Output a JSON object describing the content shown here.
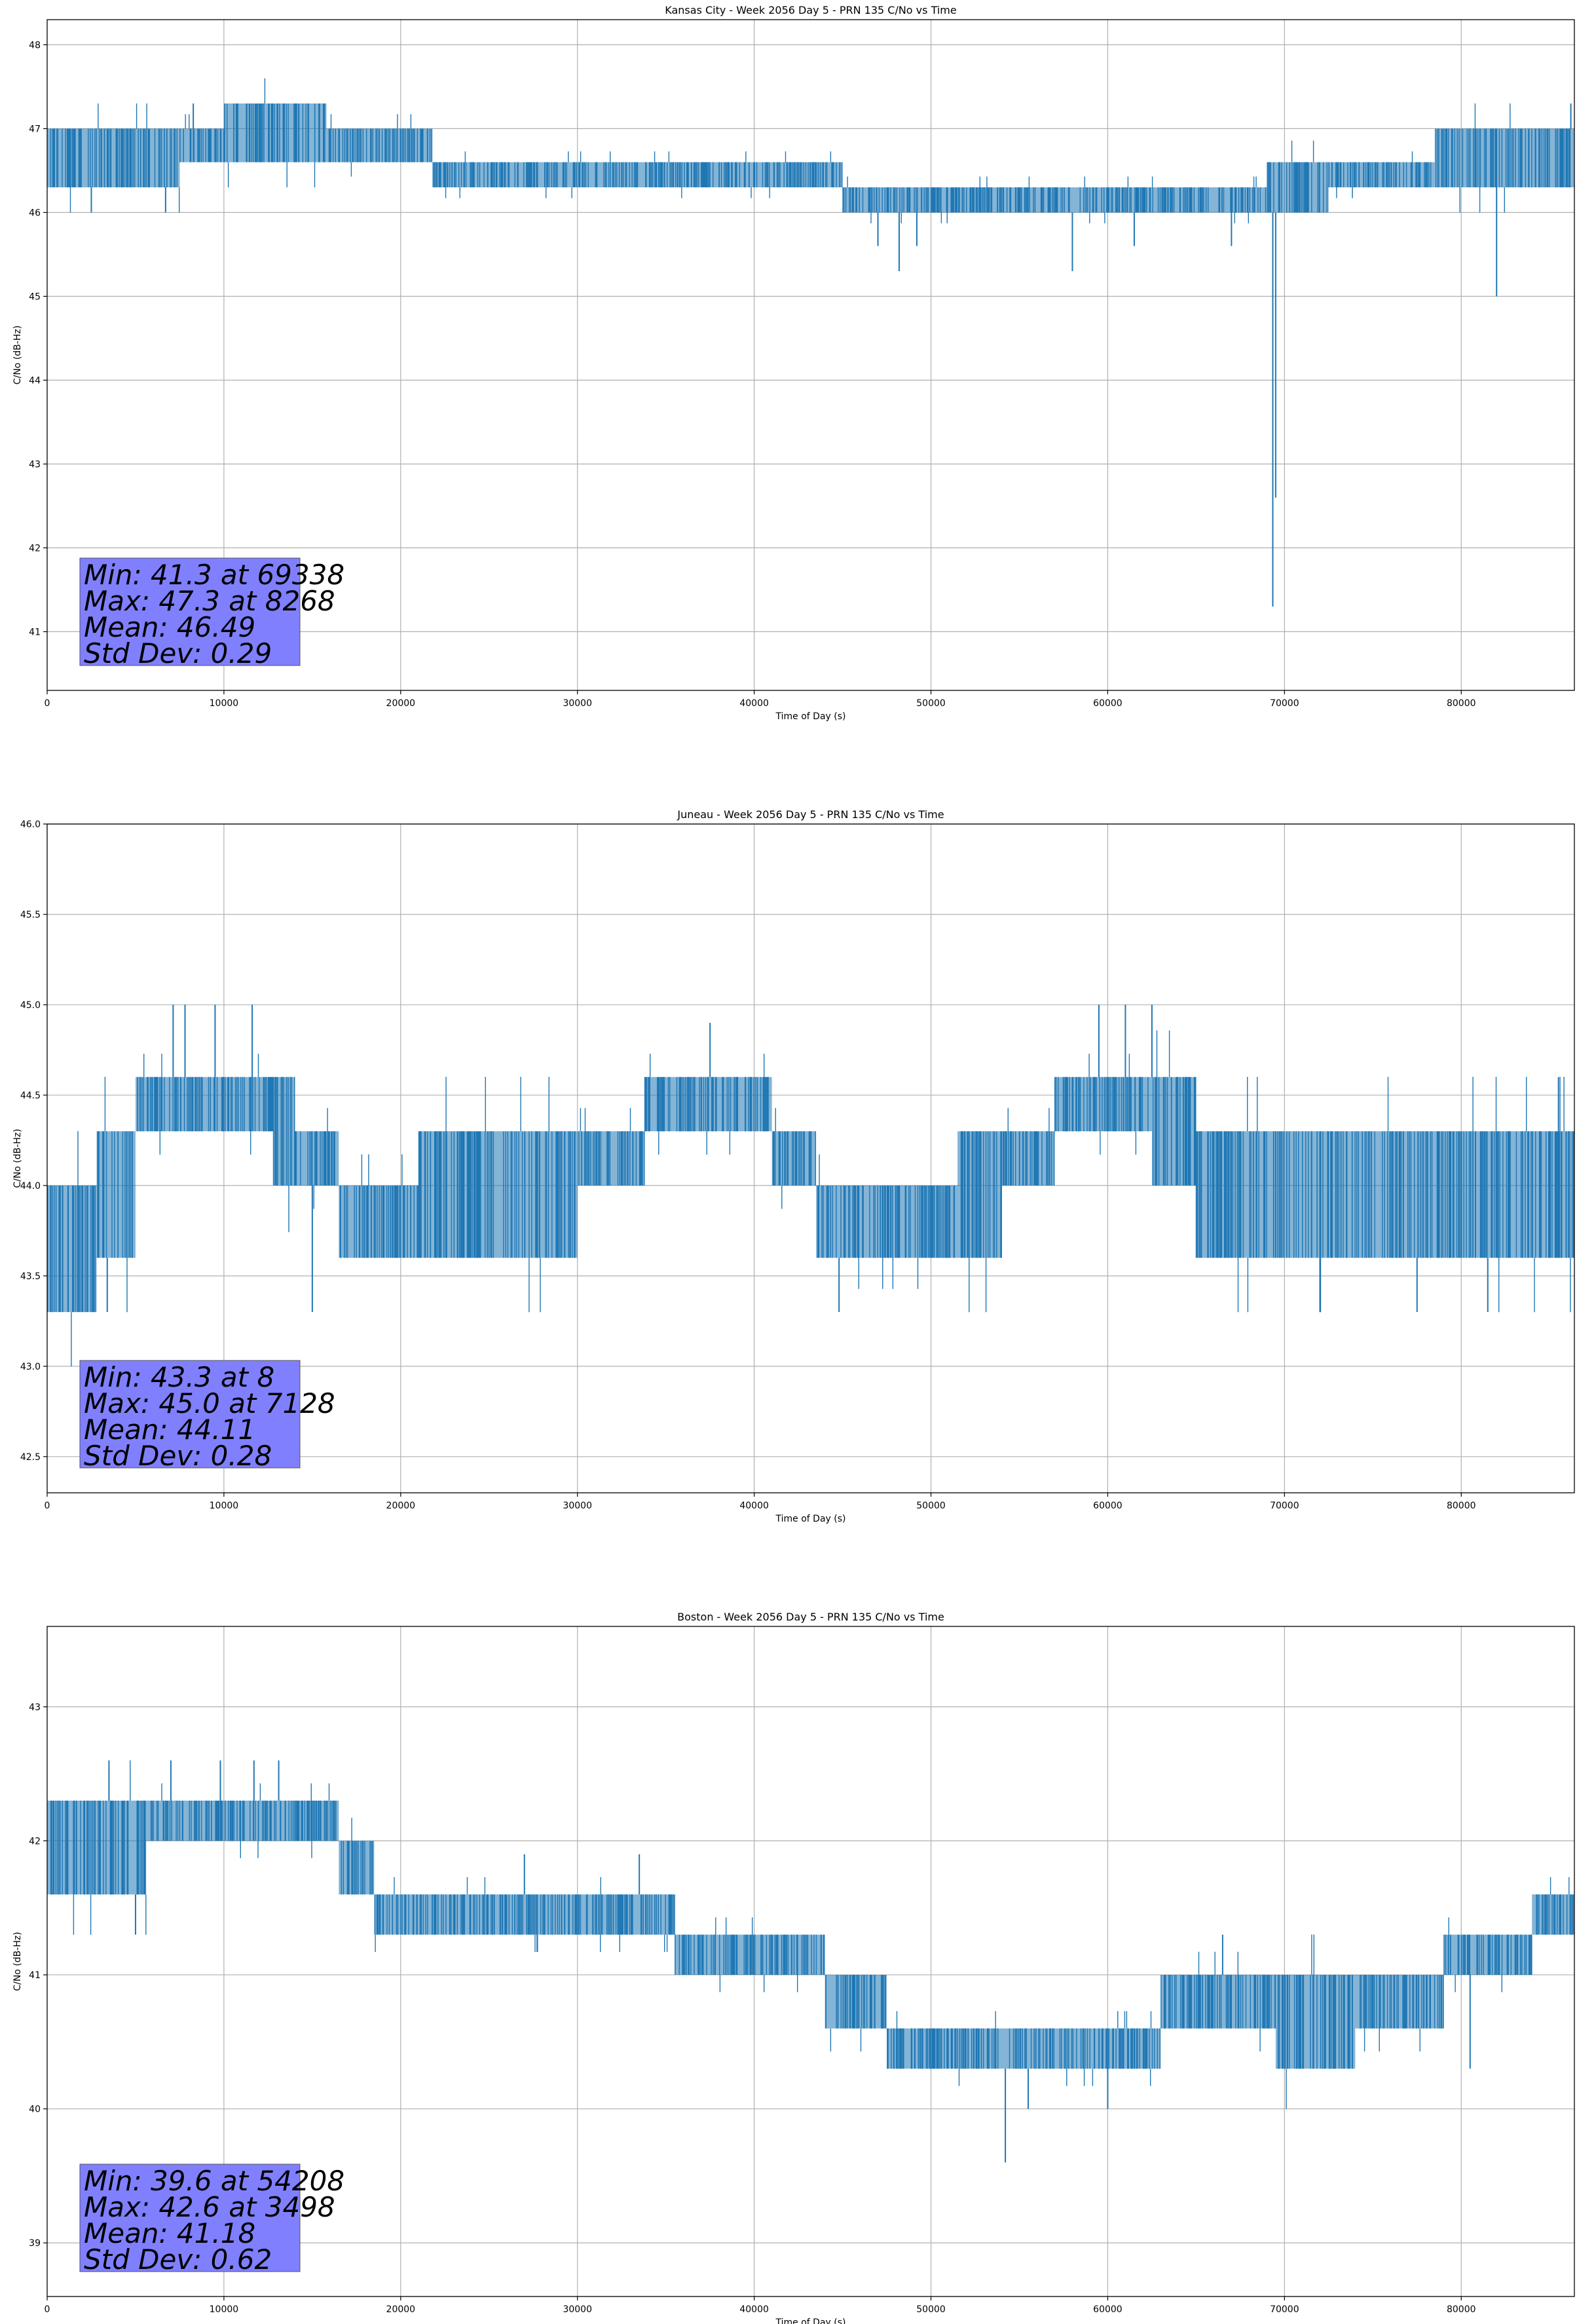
{
  "figure": {
    "background": "#ffffff",
    "line_color": "#1f77b4",
    "stats_box_color": "#8080ff"
  },
  "chart_data": [
    {
      "type": "line",
      "title": "Kansas City - Week 2056 Day 5 - PRN 135 C/No vs Time",
      "xlabel": "Time of Day (s)",
      "ylabel": "C/No (dB-Hz)",
      "xlim": [
        0,
        86400
      ],
      "ylim": [
        40.3,
        48.3
      ],
      "xticks": [
        0,
        10000,
        20000,
        30000,
        40000,
        50000,
        60000,
        70000,
        80000
      ],
      "xtick_labels": [
        "0",
        "10000",
        "20000",
        "30000",
        "40000",
        "50000",
        "60000",
        "70000",
        "80000"
      ],
      "yticks": [
        41,
        42,
        43,
        44,
        45,
        46,
        47,
        48
      ],
      "ytick_labels": [
        "41",
        "42",
        "43",
        "44",
        "45",
        "46",
        "47",
        "48"
      ],
      "grid": true,
      "series": [
        {
          "name": "C/No",
          "segments": [
            {
              "x": [
                0,
                1800
              ],
              "lo": 46.3,
              "hi": 47.0
            },
            {
              "x": [
                1800,
                7500
              ],
              "lo": 46.3,
              "hi": 47.0
            },
            {
              "x": [
                7500,
                10000
              ],
              "lo": 46.6,
              "hi": 47.0
            },
            {
              "x": [
                10000,
                15800
              ],
              "lo": 46.6,
              "hi": 47.3
            },
            {
              "x": [
                15800,
                21800
              ],
              "lo": 46.6,
              "hi": 47.0
            },
            {
              "x": [
                21800,
                30000
              ],
              "lo": 46.3,
              "hi": 46.6
            },
            {
              "x": [
                30000,
                45000
              ],
              "lo": 46.3,
              "hi": 46.6
            },
            {
              "x": [
                45000,
                52000
              ],
              "lo": 46.0,
              "hi": 46.3
            },
            {
              "x": [
                52000,
                69000
              ],
              "lo": 46.0,
              "hi": 46.3
            },
            {
              "x": [
                69000,
                72500
              ],
              "lo": 46.0,
              "hi": 46.6
            },
            {
              "x": [
                72500,
                78500
              ],
              "lo": 46.3,
              "hi": 46.6
            },
            {
              "x": [
                78500,
                86400
              ],
              "lo": 46.3,
              "hi": 47.0
            }
          ],
          "spikes": [
            [
              2500,
              46.0
            ],
            [
              6700,
              46.0
            ],
            [
              8268,
              47.3
            ],
            [
              47000,
              45.6
            ],
            [
              48200,
              45.3
            ],
            [
              49200,
              45.6
            ],
            [
              58000,
              45.3
            ],
            [
              61500,
              45.6
            ],
            [
              67000,
              45.6
            ],
            [
              69338,
              41.3
            ],
            [
              69500,
              42.6
            ],
            [
              82000,
              45.0
            ],
            [
              86200,
              47.3
            ]
          ]
        }
      ],
      "annotation": [
        "Min: 41.3 at 69338",
        "Max: 47.3 at 8268",
        "Mean: 46.49",
        "Std Dev: 0.29"
      ]
    },
    {
      "type": "line",
      "title": "Juneau - Week 2056 Day 5 - PRN 135 C/No vs Time",
      "xlabel": "Time of Day (s)",
      "ylabel": "C/No (dB-Hz)",
      "xlim": [
        0,
        86400
      ],
      "ylim": [
        42.3,
        46.0
      ],
      "xticks": [
        0,
        10000,
        20000,
        30000,
        40000,
        50000,
        60000,
        70000,
        80000
      ],
      "xtick_labels": [
        "0",
        "10000",
        "20000",
        "30000",
        "40000",
        "50000",
        "60000",
        "70000",
        "80000"
      ],
      "yticks": [
        42.5,
        43.0,
        43.5,
        44.0,
        44.5,
        45.0,
        45.5,
        46.0
      ],
      "ytick_labels": [
        "42.5",
        "43.0",
        "43.5",
        "44.0",
        "44.5",
        "45.0",
        "45.5",
        "46.0"
      ],
      "grid": true,
      "series": [
        {
          "name": "C/No",
          "segments": [
            {
              "x": [
                0,
                2800
              ],
              "lo": 43.3,
              "hi": 44.0
            },
            {
              "x": [
                2800,
                5000
              ],
              "lo": 43.6,
              "hi": 44.3
            },
            {
              "x": [
                5000,
                12800
              ],
              "lo": 44.3,
              "hi": 44.6
            },
            {
              "x": [
                12800,
                14000
              ],
              "lo": 44.0,
              "hi": 44.6
            },
            {
              "x": [
                14000,
                16500
              ],
              "lo": 44.0,
              "hi": 44.3
            },
            {
              "x": [
                16500,
                21000
              ],
              "lo": 43.6,
              "hi": 44.0
            },
            {
              "x": [
                21000,
                30000
              ],
              "lo": 43.6,
              "hi": 44.3
            },
            {
              "x": [
                30000,
                33800
              ],
              "lo": 44.0,
              "hi": 44.3
            },
            {
              "x": [
                33800,
                41000
              ],
              "lo": 44.3,
              "hi": 44.6
            },
            {
              "x": [
                41000,
                43500
              ],
              "lo": 44.0,
              "hi": 44.3
            },
            {
              "x": [
                43500,
                51500
              ],
              "lo": 43.6,
              "hi": 44.0
            },
            {
              "x": [
                51500,
                54000
              ],
              "lo": 43.6,
              "hi": 44.3
            },
            {
              "x": [
                54000,
                57000
              ],
              "lo": 44.0,
              "hi": 44.3
            },
            {
              "x": [
                57000,
                62500
              ],
              "lo": 44.3,
              "hi": 44.6
            },
            {
              "x": [
                62500,
                65000
              ],
              "lo": 44.0,
              "hi": 44.6
            },
            {
              "x": [
                65000,
                86400
              ],
              "lo": 43.6,
              "hi": 44.3
            }
          ],
          "spikes": [
            [
              8,
              43.3
            ],
            [
              3400,
              43.3
            ],
            [
              7128,
              45.0
            ],
            [
              7800,
              45.0
            ],
            [
              9500,
              45.0
            ],
            [
              11600,
              45.0
            ],
            [
              15000,
              43.3
            ],
            [
              37500,
              44.9
            ],
            [
              44800,
              43.3
            ],
            [
              59500,
              45.0
            ],
            [
              61000,
              45.0
            ],
            [
              62500,
              45.0
            ],
            [
              77500,
              43.3
            ],
            [
              81500,
              43.3
            ],
            [
              85500,
              44.6
            ]
          ]
        }
      ],
      "annotation": [
        "Min: 43.3 at 8",
        "Max: 45.0 at 7128",
        "Mean: 44.11",
        "Std Dev: 0.28"
      ]
    },
    {
      "type": "line",
      "title": "Boston - Week 2056 Day 5 - PRN 135 C/No vs Time",
      "xlabel": "Time of Day (s)",
      "ylabel": "C/No (dB-Hz)",
      "xlim": [
        0,
        86400
      ],
      "ylim": [
        38.6,
        43.6
      ],
      "xticks": [
        0,
        10000,
        20000,
        30000,
        40000,
        50000,
        60000,
        70000,
        80000
      ],
      "xtick_labels": [
        "0",
        "10000",
        "20000",
        "30000",
        "40000",
        "50000",
        "60000",
        "70000",
        "80000"
      ],
      "yticks": [
        39,
        40,
        41,
        42,
        43
      ],
      "ytick_labels": [
        "39",
        "40",
        "41",
        "42",
        "43"
      ],
      "grid": true,
      "series": [
        {
          "name": "C/No",
          "segments": [
            {
              "x": [
                0,
                3000
              ],
              "lo": 41.6,
              "hi": 42.3
            },
            {
              "x": [
                3000,
                5600
              ],
              "lo": 41.6,
              "hi": 42.3
            },
            {
              "x": [
                5600,
                16500
              ],
              "lo": 42.0,
              "hi": 42.3
            },
            {
              "x": [
                16500,
                18500
              ],
              "lo": 41.6,
              "hi": 42.0
            },
            {
              "x": [
                18500,
                28000
              ],
              "lo": 41.3,
              "hi": 41.6
            },
            {
              "x": [
                28000,
                35500
              ],
              "lo": 41.3,
              "hi": 41.6
            },
            {
              "x": [
                35500,
                44000
              ],
              "lo": 41.0,
              "hi": 41.3
            },
            {
              "x": [
                44000,
                47500
              ],
              "lo": 40.6,
              "hi": 41.0
            },
            {
              "x": [
                47500,
                63000
              ],
              "lo": 40.3,
              "hi": 40.6
            },
            {
              "x": [
                63000,
                69500
              ],
              "lo": 40.6,
              "hi": 41.0
            },
            {
              "x": [
                69500,
                74000
              ],
              "lo": 40.3,
              "hi": 41.0
            },
            {
              "x": [
                74000,
                79000
              ],
              "lo": 40.6,
              "hi": 41.0
            },
            {
              "x": [
                79000,
                84000
              ],
              "lo": 41.0,
              "hi": 41.3
            },
            {
              "x": [
                84000,
                86400
              ],
              "lo": 41.3,
              "hi": 41.6
            }
          ],
          "spikes": [
            [
              3498,
              42.6
            ],
            [
              5000,
              41.3
            ],
            [
              7000,
              42.6
            ],
            [
              9800,
              42.6
            ],
            [
              11700,
              42.6
            ],
            [
              13100,
              42.6
            ],
            [
              27000,
              41.9
            ],
            [
              33500,
              41.9
            ],
            [
              54208,
              39.6
            ],
            [
              55500,
              40.0
            ],
            [
              60000,
              40.0
            ],
            [
              66500,
              41.3
            ],
            [
              80500,
              40.3
            ]
          ]
        }
      ],
      "annotation": [
        "Min: 39.6 at 54208",
        "Max: 42.6 at 3498",
        "Mean: 41.18",
        "Std Dev: 0.62"
      ]
    }
  ]
}
